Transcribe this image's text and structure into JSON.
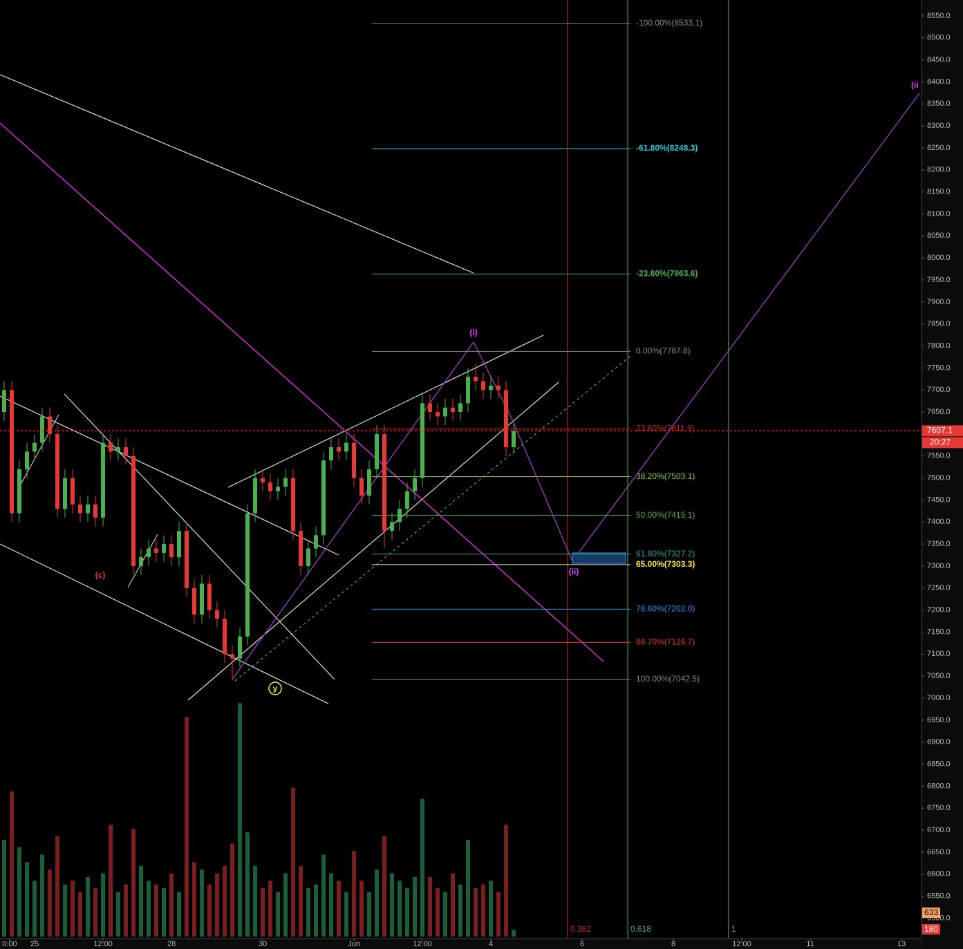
{
  "chart_data": {
    "type": "candlestick",
    "xlim": [
      -0.76,
      19.44
    ],
    "xticks": [
      {
        "value": -0.55,
        "label": "0:00"
      },
      {
        "value": 0,
        "label": "25"
      },
      {
        "value": 1.5,
        "label": "12:00"
      },
      {
        "value": 3,
        "label": "28"
      },
      {
        "value": 5,
        "label": "30"
      },
      {
        "value": 7,
        "label": "Jun"
      },
      {
        "value": 8.5,
        "label": "12:00"
      },
      {
        "value": 10,
        "label": "4"
      },
      {
        "value": 12,
        "label": "6"
      },
      {
        "value": 14,
        "label": "8"
      },
      {
        "value": 15.5,
        "label": "12:00"
      },
      {
        "value": 17,
        "label": "11"
      },
      {
        "value": 19,
        "label": "13"
      }
    ],
    "ylim": [
      6430,
      8586
    ],
    "yticks": [
      {
        "value": 6500,
        "label": "6500.0"
      },
      {
        "value": 6550,
        "label": "6550.0"
      },
      {
        "value": 6600,
        "label": "6600.0"
      },
      {
        "value": 6650,
        "label": "6650.0"
      },
      {
        "value": 6700,
        "label": "6700.0"
      },
      {
        "value": 6750,
        "label": "6750.0"
      },
      {
        "value": 6800,
        "label": "6800.0"
      },
      {
        "value": 6850,
        "label": "6850.0"
      },
      {
        "value": 6900,
        "label": "6900.0"
      },
      {
        "value": 6950,
        "label": "6950.0"
      },
      {
        "value": 7000,
        "label": "7000.0"
      },
      {
        "value": 7050,
        "label": "7050.0"
      },
      {
        "value": 7100,
        "label": "7100.0"
      },
      {
        "value": 7150,
        "label": "7150.0"
      },
      {
        "value": 7200,
        "label": "7200.0"
      },
      {
        "value": 7250,
        "label": "7250.0"
      },
      {
        "value": 7300,
        "label": "7300.0"
      },
      {
        "value": 7350,
        "label": "7350.0"
      },
      {
        "value": 7400,
        "label": "7400.0"
      },
      {
        "value": 7450,
        "label": "7450.0"
      },
      {
        "value": 7500,
        "label": "7500.0"
      },
      {
        "value": 7550,
        "label": "7550.0"
      },
      {
        "value": 7600,
        "label": "7600.0"
      },
      {
        "value": 7650,
        "label": "7650.0"
      },
      {
        "value": 7700,
        "label": "7700.0"
      },
      {
        "value": 7750,
        "label": "7750.0"
      },
      {
        "value": 7800,
        "label": "7800.0"
      },
      {
        "value": 7850,
        "label": "7850.0"
      },
      {
        "value": 7900,
        "label": "7900.0"
      },
      {
        "value": 7950,
        "label": "7950.0"
      },
      {
        "value": 8000,
        "label": "8000.0"
      },
      {
        "value": 8050,
        "label": "8050.0"
      },
      {
        "value": 8100,
        "label": "8100.0"
      },
      {
        "value": 8150,
        "label": "8150.0"
      },
      {
        "value": 8200,
        "label": "8200.0"
      },
      {
        "value": 8250,
        "label": "8250.0"
      },
      {
        "value": 8300,
        "label": "8300.0"
      },
      {
        "value": 8350,
        "label": "8350.0"
      },
      {
        "value": 8400,
        "label": "8400.0"
      },
      {
        "value": 8450,
        "label": "8450.0"
      },
      {
        "value": 8500,
        "label": "8500.0"
      },
      {
        "value": 8550,
        "label": "8550.0"
      }
    ],
    "up_color": "#4caf50",
    "down_color": "#e53935",
    "open": [
      7650,
      7700,
      7420,
      7520,
      7560,
      7580,
      7640,
      7600,
      7430,
      7500,
      7440,
      7420,
      7440,
      7410,
      7580,
      7560,
      7570,
      7550,
      7300,
      7320,
      7340,
      7330,
      7350,
      7320,
      7380,
      7250,
      7190,
      7260,
      7200,
      7180,
      7100,
      7090,
      7140,
      7420,
      7500,
      7490,
      7470,
      7480,
      7500,
      7380,
      7300,
      7340,
      7370,
      7540,
      7570,
      7560,
      7580,
      7500,
      7460,
      7520,
      7600,
      7380,
      7400,
      7430,
      7470,
      7500,
      7670,
      7650,
      7640,
      7660,
      7650,
      7670,
      7730,
      7720,
      7700,
      7710,
      7700,
      7570
    ],
    "high": [
      7720,
      7720,
      7540,
      7580,
      7600,
      7660,
      7660,
      7620,
      7520,
      7520,
      7460,
      7460,
      7460,
      7600,
      7600,
      7590,
      7590,
      7570,
      7340,
      7360,
      7360,
      7370,
      7370,
      7400,
      7400,
      7270,
      7280,
      7280,
      7220,
      7200,
      7120,
      7160,
      7440,
      7520,
      7520,
      7510,
      7500,
      7520,
      7520,
      7400,
      7360,
      7390,
      7560,
      7590,
      7590,
      7600,
      7600,
      7520,
      7540,
      7620,
      7620,
      7420,
      7450,
      7490,
      7520,
      7690,
      7690,
      7670,
      7680,
      7680,
      7690,
      7750,
      7760,
      7740,
      7730,
      7730,
      7720,
      7625
    ],
    "low": [
      7630,
      7400,
      7400,
      7500,
      7540,
      7560,
      7580,
      7410,
      7410,
      7420,
      7400,
      7400,
      7390,
      7390,
      7540,
      7540,
      7530,
      7280,
      7280,
      7300,
      7310,
      7310,
      7300,
      7300,
      7230,
      7170,
      7170,
      7180,
      7160,
      7080,
      7045,
      7070,
      7120,
      7400,
      7470,
      7450,
      7450,
      7460,
      7360,
      7280,
      7280,
      7320,
      7350,
      7520,
      7540,
      7540,
      7480,
      7440,
      7440,
      7500,
      7340,
      7360,
      7380,
      7410,
      7450,
      7480,
      7630,
      7620,
      7620,
      7630,
      7630,
      7650,
      7700,
      7680,
      7680,
      7680,
      7550,
      7555
    ],
    "close": [
      7700,
      7420,
      7520,
      7560,
      7580,
      7640,
      7600,
      7430,
      7500,
      7440,
      7420,
      7440,
      7410,
      7580,
      7560,
      7570,
      7550,
      7300,
      7320,
      7340,
      7330,
      7350,
      7320,
      7380,
      7250,
      7190,
      7260,
      7200,
      7180,
      7100,
      7090,
      7140,
      7420,
      7500,
      7490,
      7470,
      7480,
      7500,
      7380,
      7300,
      7340,
      7370,
      7540,
      7570,
      7560,
      7580,
      7500,
      7460,
      7520,
      7600,
      7380,
      7400,
      7430,
      7470,
      7500,
      7670,
      7650,
      7640,
      7660,
      7650,
      7670,
      7730,
      7720,
      7700,
      7710,
      7700,
      7570,
      7607.1
    ],
    "volume": [
      2600,
      3900,
      2400,
      2000,
      1500,
      2200,
      1800,
      2700,
      1400,
      1500,
      1200,
      1600,
      1300,
      1700,
      3000,
      1200,
      1400,
      2900,
      1900,
      1500,
      1400,
      1300,
      1700,
      1200,
      5900,
      2000,
      1800,
      1400,
      1700,
      1900,
      2500,
      6270,
      2800,
      1900,
      1300,
      1500,
      1200,
      1700,
      4000,
      1900,
      1300,
      1400,
      2200,
      1700,
      1500,
      1200,
      2300,
      1500,
      1200,
      1800,
      2700,
      1700,
      1500,
      1300,
      1600,
      3700,
      1600,
      1300,
      1200,
      1700,
      1400,
      2600,
      1300,
      1400,
      1500,
      1200,
      3000,
      180
    ],
    "volume_lim": [
      0,
      6500
    ],
    "last_price": 7607.1,
    "last_price_label": "7607.1",
    "countdown": "20:27",
    "volume_ma_label": "633",
    "last_volume_label": "180",
    "fib_levels": [
      {
        "label": "-100.00%(8533.1)",
        "value": 8533.1,
        "color": "#8a8a8a"
      },
      {
        "label": "-61.80%(8248.3)",
        "value": 8248.3,
        "color": "#26c6da"
      },
      {
        "label": "-23.60%(7963.6)",
        "value": 7963.6,
        "color": "#4caf50"
      },
      {
        "label": "0.00%(7787.8)",
        "value": 7787.8,
        "color": "#8a8a8a"
      },
      {
        "label": "23.60%(7611.9)",
        "value": 7611.9,
        "color": "#c62828"
      },
      {
        "label": "38.20%(7503.1)",
        "value": 7503.1,
        "color": "#9ccc3c"
      },
      {
        "label": "50.00%(7415.1)",
        "value": 7415.1,
        "color": "#4caf50"
      },
      {
        "label": "61.80%(7327.2)",
        "value": 7327.2,
        "color": "#26a69a"
      },
      {
        "label": "65.00%(7303.3)",
        "value": 7303.3,
        "color": "#ffeb3b"
      },
      {
        "label": "78.60%(7202.0)",
        "value": 7202.0,
        "color": "#2196f3"
      },
      {
        "label": "88.70%(7126.7)",
        "value": 7126.7,
        "color": "#e53935"
      },
      {
        "label": "100.00%(7042.5)",
        "value": 7042.5,
        "color": "#8a8a8a"
      }
    ],
    "time_fib": [
      {
        "label": "0.382",
        "x": 11.68,
        "color": "#c62828"
      },
      {
        "label": "0.618",
        "x": 13.0,
        "color": "#4caf50"
      },
      {
        "label": "1",
        "x": 15.21,
        "color": "#4caf50"
      }
    ],
    "annotations": [
      "(c)",
      "y",
      "(i)",
      "(ii)",
      "(ii"
    ]
  }
}
